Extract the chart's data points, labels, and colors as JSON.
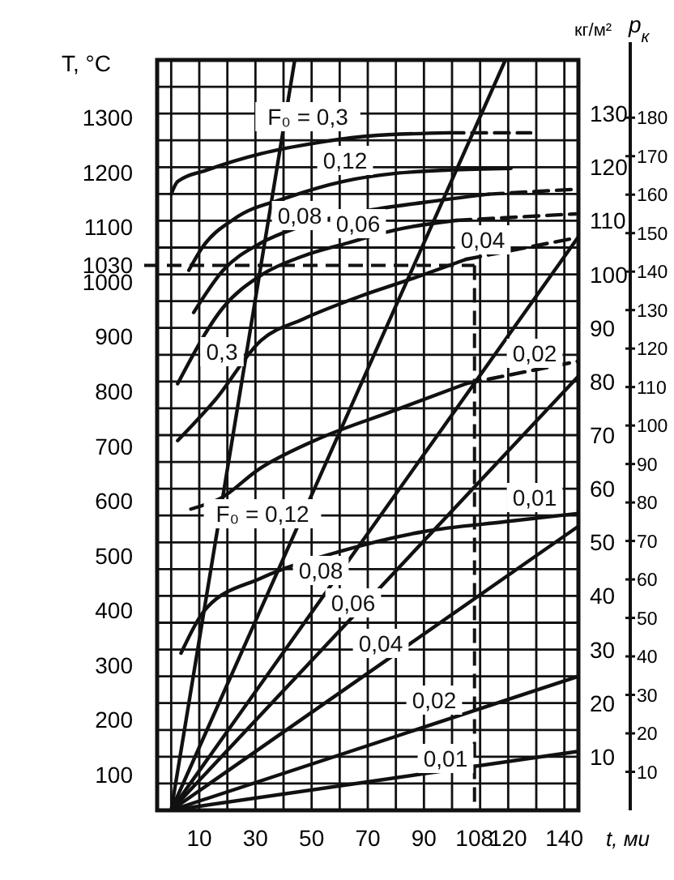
{
  "chart_data": {
    "type": "line",
    "ylabel": "T, °C",
    "y2label": "кг/м²",
    "y3label": "p$_{к}$",
    "xlabel": "t, ми",
    "xlim": [
      -5,
      145
    ],
    "ylim": [
      35,
      1405
    ],
    "y2lim": [
      0,
      140
    ],
    "y3lim": [
      0,
      195
    ],
    "xticks": [
      {
        "value": 0,
        "label": null
      },
      10,
      {
        "value": 20,
        "label": null
      },
      30,
      {
        "value": 40,
        "label": null
      },
      50,
      {
        "value": 60,
        "label": null
      },
      70,
      {
        "value": 80,
        "label": null
      },
      90,
      {
        "value": 100,
        "label": null
      },
      {
        "value": 110,
        "label": null
      },
      120,
      {
        "value": 130,
        "label": null
      },
      140
    ],
    "yticks": [
      100,
      200,
      300,
      400,
      500,
      600,
      700,
      800,
      900,
      1000,
      1100,
      1200,
      1300
    ],
    "y2ticks": [
      {
        "value": 0,
        "label": null
      },
      {
        "value": 5,
        "label": null
      },
      10,
      {
        "value": 15,
        "label": null
      },
      20,
      {
        "value": 25,
        "label": null
      },
      30,
      {
        "value": 35,
        "label": null
      },
      40,
      {
        "value": 45,
        "label": null
      },
      50,
      {
        "value": 55,
        "label": null
      },
      60,
      {
        "value": 65,
        "label": null
      },
      70,
      {
        "value": 75,
        "label": null
      },
      80,
      {
        "value": 85,
        "label": null
      },
      90,
      {
        "value": 95,
        "label": null
      },
      100,
      {
        "value": 105,
        "label": null
      },
      110,
      {
        "value": 115,
        "label": null
      },
      120,
      {
        "value": 125,
        "label": null
      },
      130,
      {
        "value": 135,
        "label": null
      },
      {
        "value": 140,
        "label": null
      }
    ],
    "y3ticks": [
      10,
      20,
      30,
      40,
      50,
      60,
      70,
      80,
      90,
      100,
      110,
      120,
      130,
      140,
      150,
      160,
      170,
      180
    ],
    "grid": true,
    "marker": "none",
    "series": [
      {
        "axis": "y",
        "color": "#111111",
        "line_style": "solid",
        "x": [
          0,
          2.3,
          12.7,
          32,
          52,
          70,
          99
        ],
        "values": [
          1160,
          1183,
          1204,
          1234,
          1254,
          1266,
          1272
        ]
      },
      {
        "axis": "y",
        "color": "#111111",
        "line_style": "dashed",
        "x": [
          99,
          128
        ],
        "values": [
          1272,
          1272
        ]
      },
      {
        "axis": "y",
        "color": "#111111",
        "line_style": "solid",
        "x": [
          6.3,
          11,
          22.5,
          41.5,
          61,
          80,
          99,
          121
        ],
        "values": [
          1021,
          1062,
          1115,
          1154,
          1183,
          1198,
          1204,
          1207
        ]
      },
      {
        "axis": "y",
        "color": "#111111",
        "line_style": "solid",
        "x": [
          8,
          18.5,
          32,
          45.6,
          70,
          90,
          113
        ],
        "values": [
          944,
          1021,
          1071,
          1100,
          1130,
          1145,
          1160
        ]
      },
      {
        "axis": "y",
        "color": "#111111",
        "line_style": "dashed",
        "x": [
          113,
          144
        ],
        "values": [
          1160,
          1169
        ]
      },
      {
        "axis": "y",
        "color": "#111111",
        "line_style": "solid",
        "x": [
          2.3,
          18.5,
          32,
          47,
          63,
          80,
          101.5
        ],
        "values": [
          814,
          953,
          1012,
          1047,
          1071,
          1095,
          1112
        ]
      },
      {
        "axis": "y",
        "color": "#111111",
        "line_style": "dashed",
        "x": [
          101.5,
          144
        ],
        "values": [
          1112,
          1124
        ]
      },
      {
        "axis": "y",
        "color": "#111111",
        "line_style": "solid",
        "x": [
          2.3,
          15.6,
          32,
          47,
          67,
          86,
          105
        ],
        "values": [
          710,
          784,
          893,
          932,
          973,
          1006,
          1041
        ]
      },
      {
        "axis": "y",
        "color": "#111111",
        "line_style": "dashed",
        "x": [
          105,
          144
        ],
        "values": [
          1041,
          1080
        ]
      },
      {
        "axis": "y",
        "color": "#111111",
        "line_style": "solid",
        "x": [
          7,
          18,
          31,
          51,
          80,
          105
        ],
        "values": [
          585,
          606,
          657,
          710,
          766,
          814
        ]
      },
      {
        "axis": "y",
        "color": "#111111",
        "line_style": "dashed",
        "x": [
          105,
          145
        ],
        "values": [
          814,
          855
        ]
      },
      {
        "axis": "y",
        "color": "#111111",
        "line_style": "solid",
        "x": [
          3.5,
          12.7,
          32,
          61,
          90,
          119,
          145
        ],
        "values": [
          322,
          405,
          459,
          509,
          544,
          562,
          577
        ]
      },
      {
        "axis": "y2",
        "color": "#111111",
        "line_style": "solid",
        "x": [
          0,
          44
        ],
        "values": [
          0,
          140
        ]
      },
      {
        "axis": "y2",
        "color": "#111111",
        "line_style": "solid",
        "x": [
          0,
          119
        ],
        "values": [
          0,
          140
        ]
      },
      {
        "axis": "y2",
        "color": "#111111",
        "line_style": "solid",
        "x": [
          0,
          145
        ],
        "values": [
          0,
          107
        ]
      },
      {
        "axis": "y2",
        "color": "#111111",
        "line_style": "solid",
        "x": [
          0,
          145
        ],
        "values": [
          0,
          81
        ]
      },
      {
        "axis": "y2",
        "color": "#111111",
        "line_style": "solid",
        "x": [
          0,
          145
        ],
        "values": [
          0,
          53
        ]
      },
      {
        "axis": "y2",
        "color": "#111111",
        "line_style": "solid",
        "x": [
          0,
          145
        ],
        "values": [
          0,
          25
        ]
      },
      {
        "axis": "y2",
        "color": "#111111",
        "line_style": "solid",
        "x": [
          0,
          145
        ],
        "values": [
          0,
          11
        ]
      }
    ],
    "ref_lines": [
      {
        "axis": "y",
        "value": 1030,
        "label": "1030",
        "line_style": "dashed"
      },
      {
        "axis": "x",
        "value": 108,
        "label": "108",
        "line_style": "dashed"
      }
    ],
    "annotations": [
      "F₀ = 0,3",
      "0,12",
      "0,08",
      "0,06",
      "0,04",
      "0,3",
      "0,02",
      "0,01",
      "F₀ = 0,12",
      "0,08",
      "0,06",
      "0,04",
      "0,02",
      "0,01"
    ]
  }
}
